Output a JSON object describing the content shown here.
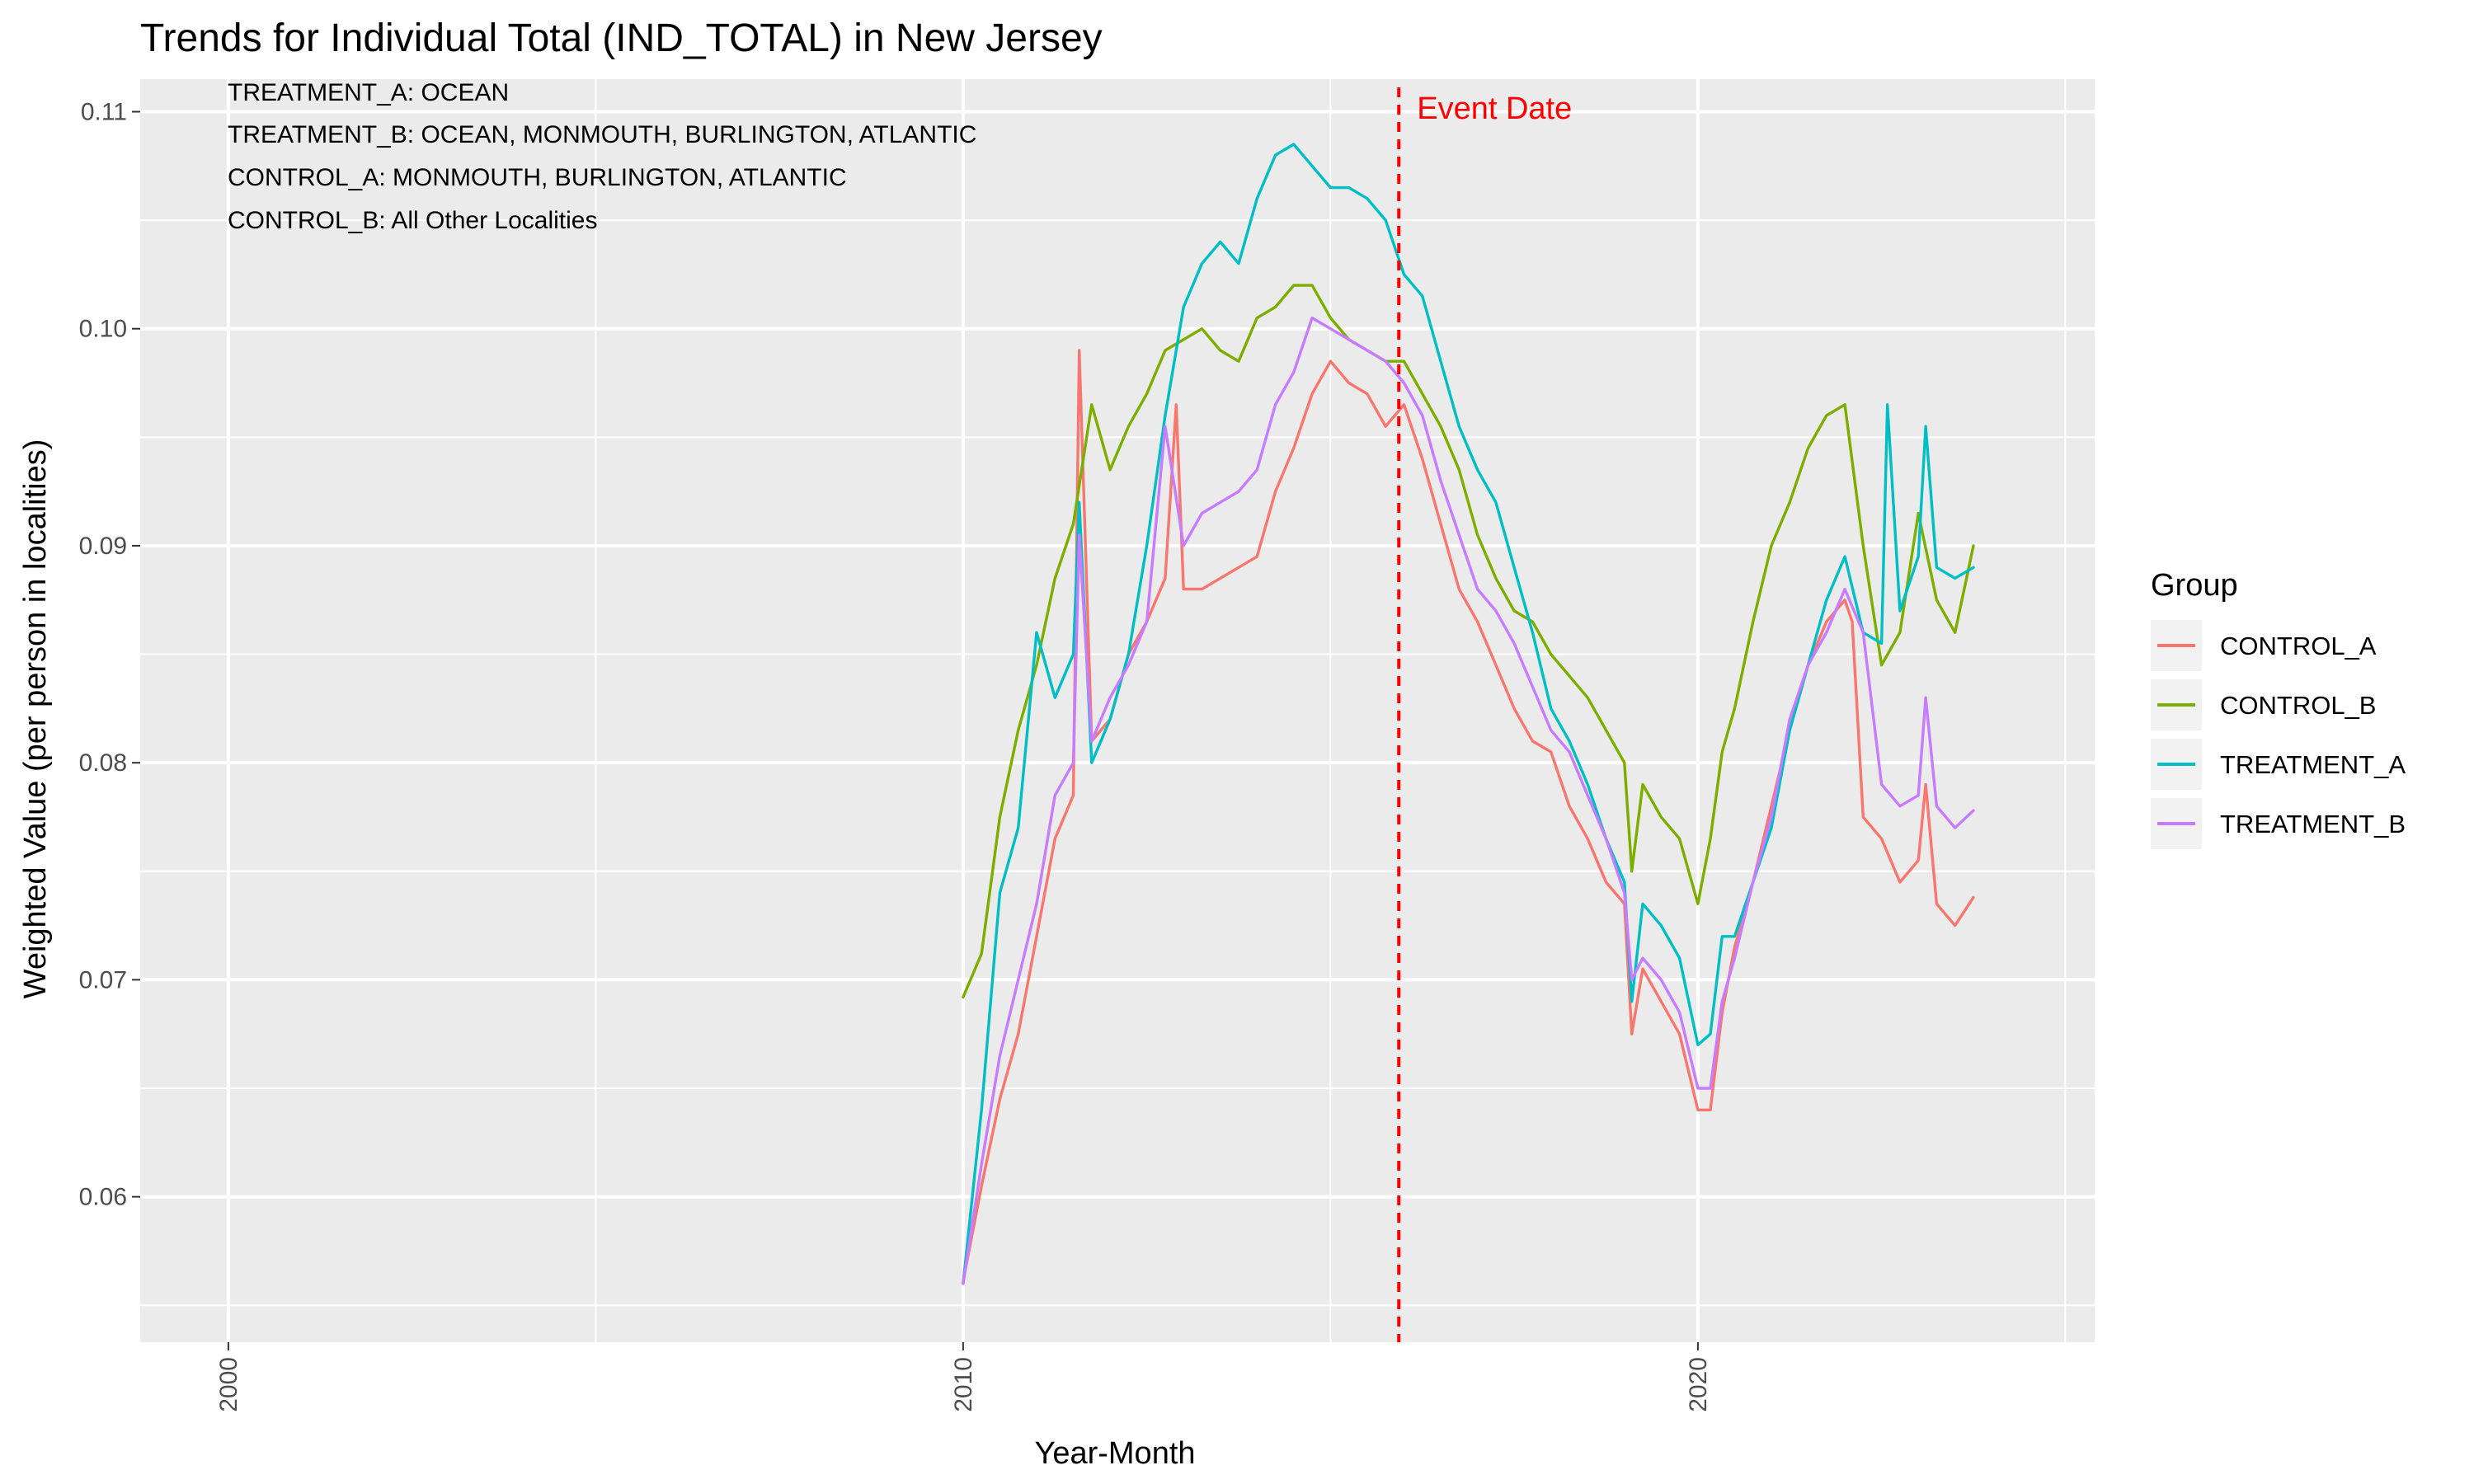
{
  "chart_data": {
    "type": "line",
    "title": "Trends for Individual Total (IND_TOTAL) in New Jersey",
    "xlabel": "Year-Month",
    "ylabel": "Weighted Value (per person in localities)",
    "xlim": [
      1998.8,
      2025.4
    ],
    "ylim": [
      0.0533,
      0.1115
    ],
    "x_ticks": [
      2000,
      2010,
      2020
    ],
    "y_ticks": [
      0.06,
      0.07,
      0.08,
      0.09,
      0.1,
      0.11
    ],
    "y_tick_labels": [
      "0.06",
      "0.07",
      "0.08",
      "0.09",
      "0.10",
      "0.11"
    ],
    "grid": true,
    "legend_position": "right",
    "legend_title": "Group",
    "annotations": [
      "TREATMENT_A: OCEAN",
      "TREATMENT_B: OCEAN, MONMOUTH, BURLINGTON, ATLANTIC",
      "CONTROL_A: MONMOUTH, BURLINGTON, ATLANTIC",
      "CONTROL_B: All Other Localities"
    ],
    "event": {
      "x": 2015.93,
      "label": "Event Date",
      "color": "#ff0000"
    },
    "series": [
      {
        "name": "CONTROL_A",
        "color": "#F8766D",
        "x": [
          2010.0,
          2010.25,
          2010.5,
          2010.75,
          2011.0,
          2011.25,
          2011.5,
          2011.58,
          2011.75,
          2012.0,
          2012.25,
          2012.5,
          2012.75,
          2012.9,
          2013.0,
          2013.25,
          2013.5,
          2013.75,
          2014.0,
          2014.25,
          2014.5,
          2014.75,
          2015.0,
          2015.25,
          2015.5,
          2015.75,
          2016.0,
          2016.25,
          2016.5,
          2016.75,
          2017.0,
          2017.25,
          2017.5,
          2017.75,
          2018.0,
          2018.25,
          2018.5,
          2018.75,
          2019.0,
          2019.1,
          2019.25,
          2019.5,
          2019.75,
          2020.0,
          2020.17,
          2020.33,
          2020.5,
          2020.75,
          2021.0,
          2021.25,
          2021.5,
          2021.75,
          2022.0,
          2022.1,
          2022.25,
          2022.5,
          2022.75,
          2023.0,
          2023.1,
          2023.25,
          2023.5,
          2023.75
        ],
        "y": [
          0.0561,
          0.0605,
          0.0645,
          0.0675,
          0.072,
          0.0765,
          0.0785,
          0.099,
          0.081,
          0.082,
          0.085,
          0.0865,
          0.0885,
          0.0965,
          0.088,
          0.088,
          0.0885,
          0.089,
          0.0895,
          0.0925,
          0.0945,
          0.097,
          0.0985,
          0.0975,
          0.097,
          0.0955,
          0.0965,
          0.094,
          0.091,
          0.088,
          0.0865,
          0.0845,
          0.0825,
          0.081,
          0.0805,
          0.078,
          0.0765,
          0.0745,
          0.0735,
          0.0675,
          0.0705,
          0.069,
          0.0675,
          0.064,
          0.064,
          0.0685,
          0.0715,
          0.0745,
          0.078,
          0.0815,
          0.0845,
          0.0865,
          0.0875,
          0.0865,
          0.0775,
          0.0765,
          0.0745,
          0.0755,
          0.079,
          0.0735,
          0.0725,
          0.0738
        ]
      },
      {
        "name": "CONTROL_B",
        "color": "#7CAE00",
        "x": [
          2010.0,
          2010.25,
          2010.5,
          2010.75,
          2011.0,
          2011.25,
          2011.5,
          2011.75,
          2012.0,
          2012.25,
          2012.5,
          2012.75,
          2013.0,
          2013.25,
          2013.5,
          2013.75,
          2014.0,
          2014.25,
          2014.5,
          2014.75,
          2015.0,
          2015.25,
          2015.5,
          2015.75,
          2016.0,
          2016.25,
          2016.5,
          2016.75,
          2017.0,
          2017.25,
          2017.5,
          2017.75,
          2018.0,
          2018.25,
          2018.5,
          2018.75,
          2019.0,
          2019.1,
          2019.25,
          2019.5,
          2019.75,
          2020.0,
          2020.17,
          2020.33,
          2020.5,
          2020.75,
          2021.0,
          2021.25,
          2021.5,
          2021.75,
          2022.0,
          2022.25,
          2022.5,
          2022.75,
          2023.0,
          2023.25,
          2023.5,
          2023.75
        ],
        "y": [
          0.0692,
          0.0712,
          0.0775,
          0.0815,
          0.0845,
          0.0885,
          0.091,
          0.0965,
          0.0935,
          0.0955,
          0.097,
          0.099,
          0.0995,
          0.1,
          0.099,
          0.0985,
          0.1005,
          0.101,
          0.102,
          0.102,
          0.1005,
          0.0995,
          0.099,
          0.0985,
          0.0985,
          0.097,
          0.0955,
          0.0935,
          0.0905,
          0.0885,
          0.087,
          0.0865,
          0.085,
          0.084,
          0.083,
          0.0815,
          0.08,
          0.075,
          0.079,
          0.0775,
          0.0765,
          0.0735,
          0.0765,
          0.0805,
          0.0825,
          0.0865,
          0.09,
          0.092,
          0.0945,
          0.096,
          0.0965,
          0.09,
          0.0845,
          0.086,
          0.0915,
          0.0875,
          0.086,
          0.09
        ]
      },
      {
        "name": "TREATMENT_A",
        "color": "#00BFC4",
        "x": [
          2010.0,
          2010.25,
          2010.5,
          2010.75,
          2011.0,
          2011.25,
          2011.5,
          2011.58,
          2011.75,
          2012.0,
          2012.25,
          2012.5,
          2012.75,
          2013.0,
          2013.25,
          2013.5,
          2013.75,
          2014.0,
          2014.25,
          2014.5,
          2014.75,
          2015.0,
          2015.25,
          2015.5,
          2015.75,
          2016.0,
          2016.25,
          2016.5,
          2016.75,
          2017.0,
          2017.25,
          2017.5,
          2017.75,
          2018.0,
          2018.25,
          2018.5,
          2018.75,
          2019.0,
          2019.1,
          2019.25,
          2019.5,
          2019.75,
          2020.0,
          2020.17,
          2020.33,
          2020.5,
          2020.75,
          2021.0,
          2021.25,
          2021.5,
          2021.75,
          2022.0,
          2022.25,
          2022.5,
          2022.58,
          2022.75,
          2023.0,
          2023.1,
          2023.25,
          2023.5,
          2023.75
        ],
        "y": [
          0.056,
          0.064,
          0.074,
          0.077,
          0.086,
          0.083,
          0.085,
          0.092,
          0.08,
          0.082,
          0.085,
          0.09,
          0.096,
          0.101,
          0.103,
          0.104,
          0.103,
          0.106,
          0.108,
          0.1085,
          0.1075,
          0.1065,
          0.1065,
          0.106,
          0.105,
          0.1025,
          0.1015,
          0.0985,
          0.0955,
          0.0935,
          0.092,
          0.089,
          0.086,
          0.0825,
          0.081,
          0.079,
          0.0765,
          0.0745,
          0.069,
          0.0735,
          0.0725,
          0.071,
          0.067,
          0.0675,
          0.072,
          0.072,
          0.0745,
          0.077,
          0.0815,
          0.0845,
          0.0875,
          0.0895,
          0.086,
          0.0855,
          0.0965,
          0.087,
          0.0895,
          0.0955,
          0.089,
          0.0885,
          0.089
        ]
      },
      {
        "name": "TREATMENT_B",
        "color": "#C77CFF",
        "x": [
          2010.0,
          2010.25,
          2010.5,
          2010.75,
          2011.0,
          2011.25,
          2011.5,
          2011.58,
          2011.75,
          2012.0,
          2012.25,
          2012.5,
          2012.75,
          2013.0,
          2013.25,
          2013.5,
          2013.75,
          2014.0,
          2014.25,
          2014.5,
          2014.75,
          2015.0,
          2015.25,
          2015.5,
          2015.75,
          2016.0,
          2016.25,
          2016.5,
          2016.75,
          2017.0,
          2017.25,
          2017.5,
          2017.75,
          2018.0,
          2018.25,
          2018.5,
          2018.75,
          2019.0,
          2019.1,
          2019.25,
          2019.5,
          2019.75,
          2020.0,
          2020.17,
          2020.33,
          2020.5,
          2020.75,
          2021.0,
          2021.25,
          2021.5,
          2021.75,
          2022.0,
          2022.25,
          2022.5,
          2022.75,
          2023.0,
          2023.1,
          2023.25,
          2023.5,
          2023.75
        ],
        "y": [
          0.056,
          0.0615,
          0.0665,
          0.07,
          0.0735,
          0.0785,
          0.08,
          0.0905,
          0.081,
          0.083,
          0.0845,
          0.0865,
          0.0955,
          0.09,
          0.0915,
          0.092,
          0.0925,
          0.0935,
          0.0965,
          0.098,
          0.1005,
          0.1,
          0.0995,
          0.099,
          0.0985,
          0.0975,
          0.096,
          0.093,
          0.0905,
          0.088,
          0.087,
          0.0855,
          0.0835,
          0.0815,
          0.0805,
          0.0785,
          0.0765,
          0.074,
          0.07,
          0.071,
          0.07,
          0.0685,
          0.065,
          0.065,
          0.069,
          0.071,
          0.0745,
          0.0775,
          0.082,
          0.0845,
          0.086,
          0.088,
          0.086,
          0.079,
          0.078,
          0.0785,
          0.083,
          0.078,
          0.077,
          0.0778
        ]
      }
    ]
  }
}
